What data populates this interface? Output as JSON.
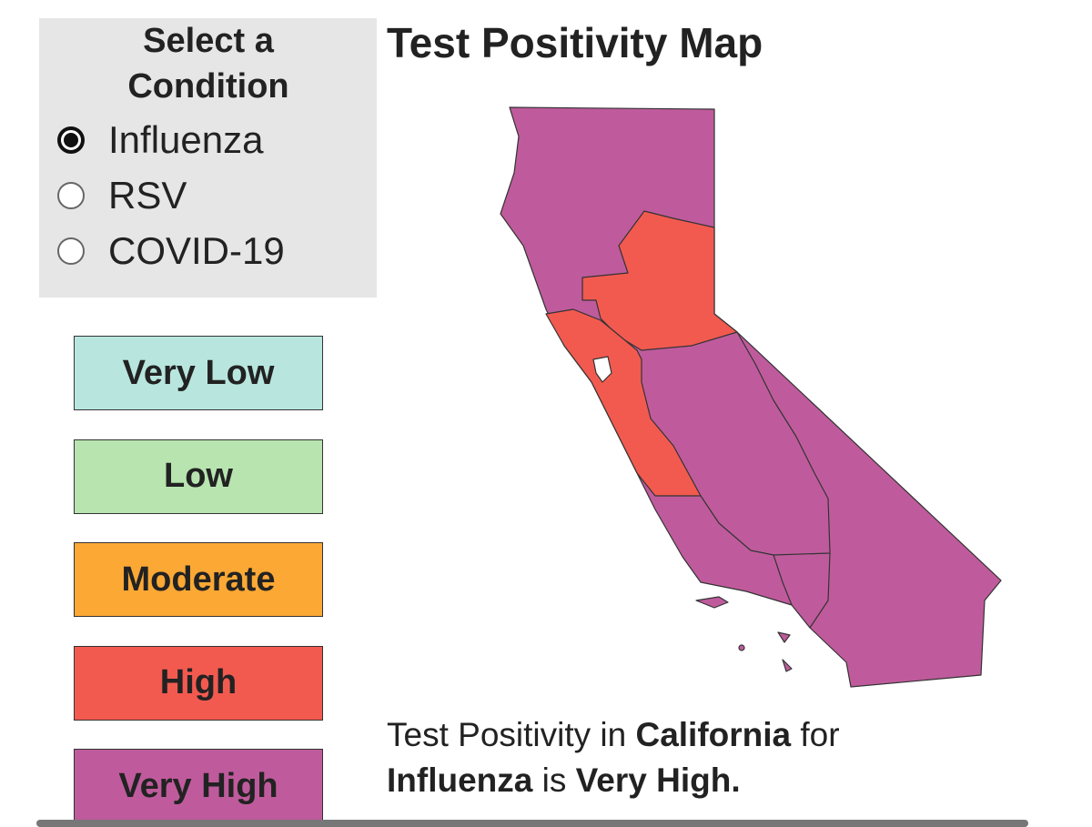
{
  "sidebar": {
    "title": "Select a Condition",
    "options": [
      {
        "label": "Influenza",
        "checked": true
      },
      {
        "label": "RSV",
        "checked": false
      },
      {
        "label": "COVID-19",
        "checked": false
      }
    ]
  },
  "legend": [
    {
      "label": "Very Low",
      "color": "#b8e6df"
    },
    {
      "label": "Low",
      "color": "#b8e4b0"
    },
    {
      "label": "Moderate",
      "color": "#fca835"
    },
    {
      "label": "High",
      "color": "#f25a50"
    },
    {
      "label": "Very High",
      "color": "#bf5b9c"
    }
  ],
  "map": {
    "title": "Test Positivity Map"
  },
  "caption": {
    "prefix": "Test Positivity in",
    "region": "California",
    "middle": "for",
    "condition": "Influenza",
    "verb": "is",
    "level": "Very High."
  }
}
